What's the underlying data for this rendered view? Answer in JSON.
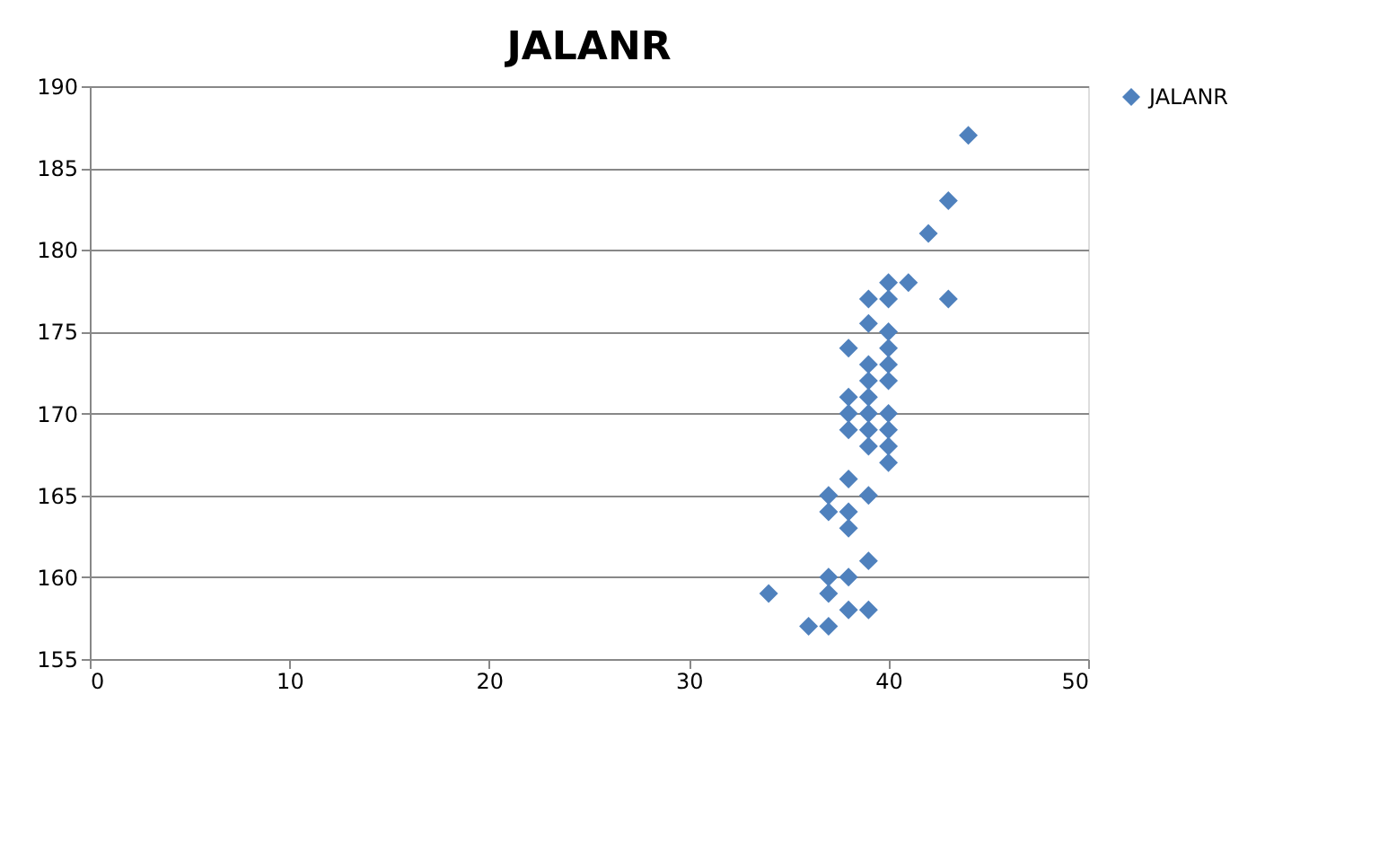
{
  "chart_data": {
    "type": "scatter",
    "title": "JALANR",
    "series": [
      {
        "name": "JALANR",
        "color": "#4f81bd",
        "x": [
          44,
          43,
          42,
          41,
          40,
          43,
          39,
          40,
          39,
          40,
          38,
          40,
          40,
          39,
          40,
          39,
          38,
          39,
          40,
          38,
          39,
          40,
          38,
          39,
          40,
          39,
          40,
          38,
          37,
          39,
          37,
          38,
          38,
          39,
          37,
          38,
          37,
          34,
          38,
          39,
          36,
          37
        ],
        "values": [
          187,
          183,
          181,
          178,
          178,
          177,
          177,
          177,
          175.5,
          175,
          174,
          174,
          173,
          173,
          172,
          172,
          171,
          171,
          170,
          170,
          170,
          169,
          169,
          169,
          168,
          168,
          167,
          166,
          165,
          165,
          164,
          164,
          163,
          161,
          160,
          160,
          159,
          159,
          158,
          158,
          157,
          157
        ]
      }
    ],
    "xlim": [
      0,
      50
    ],
    "xticks": [
      0,
      10,
      20,
      30,
      40,
      50
    ],
    "ylim": [
      155,
      190
    ],
    "yticks": [
      155,
      160,
      165,
      170,
      175,
      180,
      185,
      190
    ],
    "grid": "y",
    "legend": "right",
    "marker": "diamond"
  }
}
